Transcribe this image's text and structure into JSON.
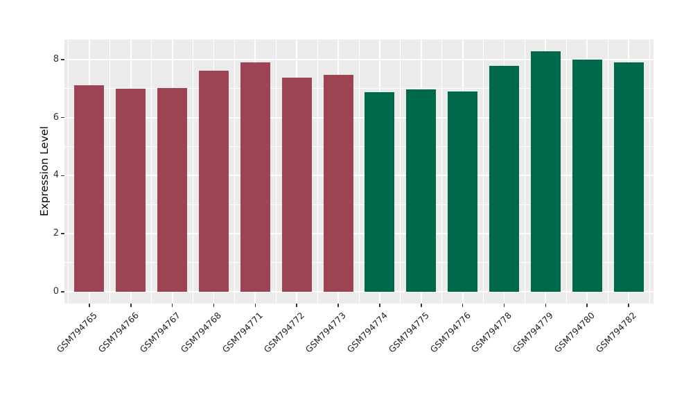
{
  "chart_data": {
    "type": "bar",
    "title": "",
    "xlabel": "",
    "ylabel": "Expression Level",
    "categories": [
      "GSM794765",
      "GSM794766",
      "GSM794767",
      "GSM794768",
      "GSM794771",
      "GSM794772",
      "GSM794773",
      "GSM794774",
      "GSM794775",
      "GSM794776",
      "GSM794778",
      "GSM794779",
      "GSM794780",
      "GSM794782"
    ],
    "values": [
      7.12,
      7.0,
      7.02,
      7.61,
      7.9,
      7.38,
      7.48,
      6.88,
      6.98,
      6.9,
      7.78,
      8.28,
      8.0,
      7.9
    ],
    "bar_groups": [
      "A",
      "A",
      "A",
      "A",
      "A",
      "A",
      "A",
      "B",
      "B",
      "B",
      "B",
      "B",
      "B",
      "B"
    ],
    "group_colors": {
      "A": "#9C4452",
      "B": "#00694B"
    },
    "yticks": [
      0,
      2,
      4,
      6,
      8
    ],
    "minor_yticks": [
      1,
      3,
      5,
      7
    ],
    "ylim": [
      0,
      8.7
    ],
    "grid": "on",
    "legend": "none",
    "panel_background": "#EBEBEB",
    "gridline_color": "#FFFFFF",
    "tick_text_color": "#303030"
  }
}
